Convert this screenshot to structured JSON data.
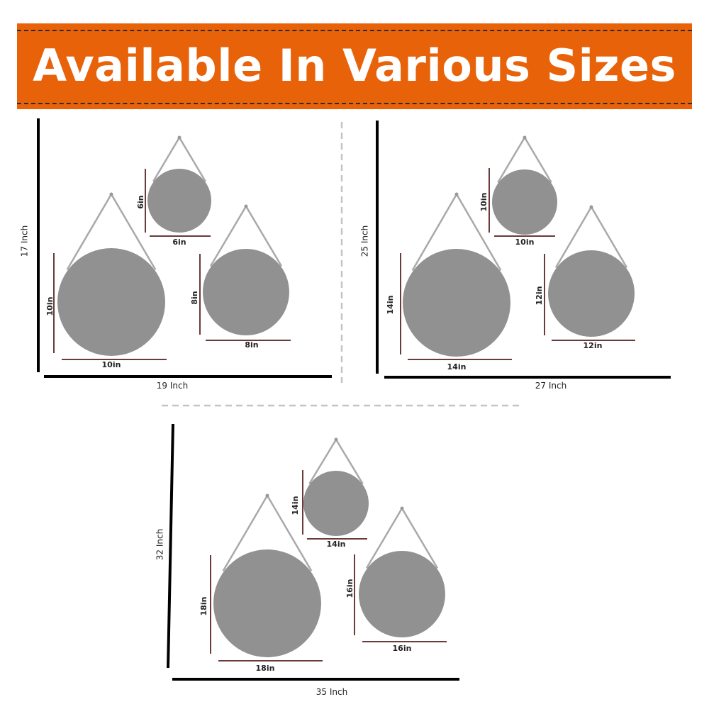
{
  "banner": {
    "title": "Available In Various Sizes",
    "background_color": "#e8620a"
  },
  "colors": {
    "mirror": "#919191",
    "strap": "#a9a9a9",
    "dimension_line": "#6b3a3a",
    "frame_line": "#000000"
  },
  "sets": [
    {
      "height_label": "17 Inch",
      "width_label": "19 Inch",
      "mirrors": [
        {
          "size": "6in"
        },
        {
          "size": "10in"
        },
        {
          "size": "8in"
        }
      ]
    },
    {
      "height_label": "25 Inch",
      "width_label": "27 Inch",
      "mirrors": [
        {
          "size": "10in"
        },
        {
          "size": "14in"
        },
        {
          "size": "12in"
        }
      ]
    },
    {
      "height_label": "32 Inch",
      "width_label": "35 Inch",
      "mirrors": [
        {
          "size": "14in"
        },
        {
          "size": "18in"
        },
        {
          "size": "16in"
        }
      ]
    }
  ]
}
